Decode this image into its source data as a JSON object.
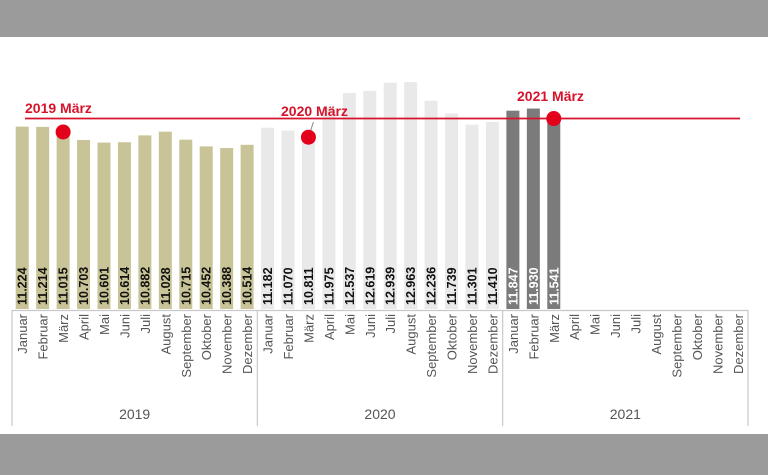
{
  "chart_data": {
    "type": "bar",
    "title": "",
    "xlabel": "",
    "ylabel": "",
    "grid": false,
    "years": [
      "2019",
      "2020",
      "2021"
    ],
    "months": [
      "Januar",
      "Februar",
      "März",
      "April",
      "Mai",
      "Juni",
      "Juli",
      "August",
      "September",
      "Oktober",
      "November",
      "Dezember"
    ],
    "series": [
      {
        "year": "2019",
        "color": "#c9c497",
        "label_color": "#111111",
        "values": [
          11.224,
          11.214,
          11.015,
          10.703,
          10.601,
          10.614,
          10.882,
          11.028,
          10.715,
          10.452,
          10.388,
          10.514
        ],
        "labels": [
          "11.224",
          "11.214",
          "11.015",
          "10.703",
          "10.601",
          "10.614",
          "10.882",
          "11.028",
          "10.715",
          "10.452",
          "10.388",
          "10.514"
        ]
      },
      {
        "year": "2020",
        "color": "#e9e9e9",
        "label_color": "#111111",
        "values": [
          11.182,
          11.07,
          10.811,
          11.975,
          12.537,
          12.619,
          12.939,
          12.963,
          12.236,
          11.739,
          11.301,
          11.41
        ],
        "labels": [
          "11.182",
          "11.070",
          "10.811",
          "11.975",
          "12.537",
          "12.619",
          "12.939",
          "12.963",
          "12.236",
          "11.739",
          "11.301",
          "11.410"
        ]
      },
      {
        "year": "2021",
        "color": "#7b7b7b",
        "label_color": "#ffffff",
        "values": [
          11.847,
          11.93,
          11.541
        ],
        "labels": [
          "11.847",
          "11.930",
          "11.541"
        ]
      }
    ],
    "reference_line": {
      "value": 11.541,
      "color": "#d7132b"
    },
    "annotations": [
      {
        "text": "2019 März",
        "year": "2019",
        "month": "März",
        "value": 11.015
      },
      {
        "text": "2020 März",
        "year": "2020",
        "month": "März",
        "value": 10.811
      },
      {
        "text": "2021 März",
        "year": "2021",
        "month": "März",
        "value": 11.541
      }
    ],
    "highlight_color": "#e3001b",
    "axis_text_color": "#555555"
  }
}
